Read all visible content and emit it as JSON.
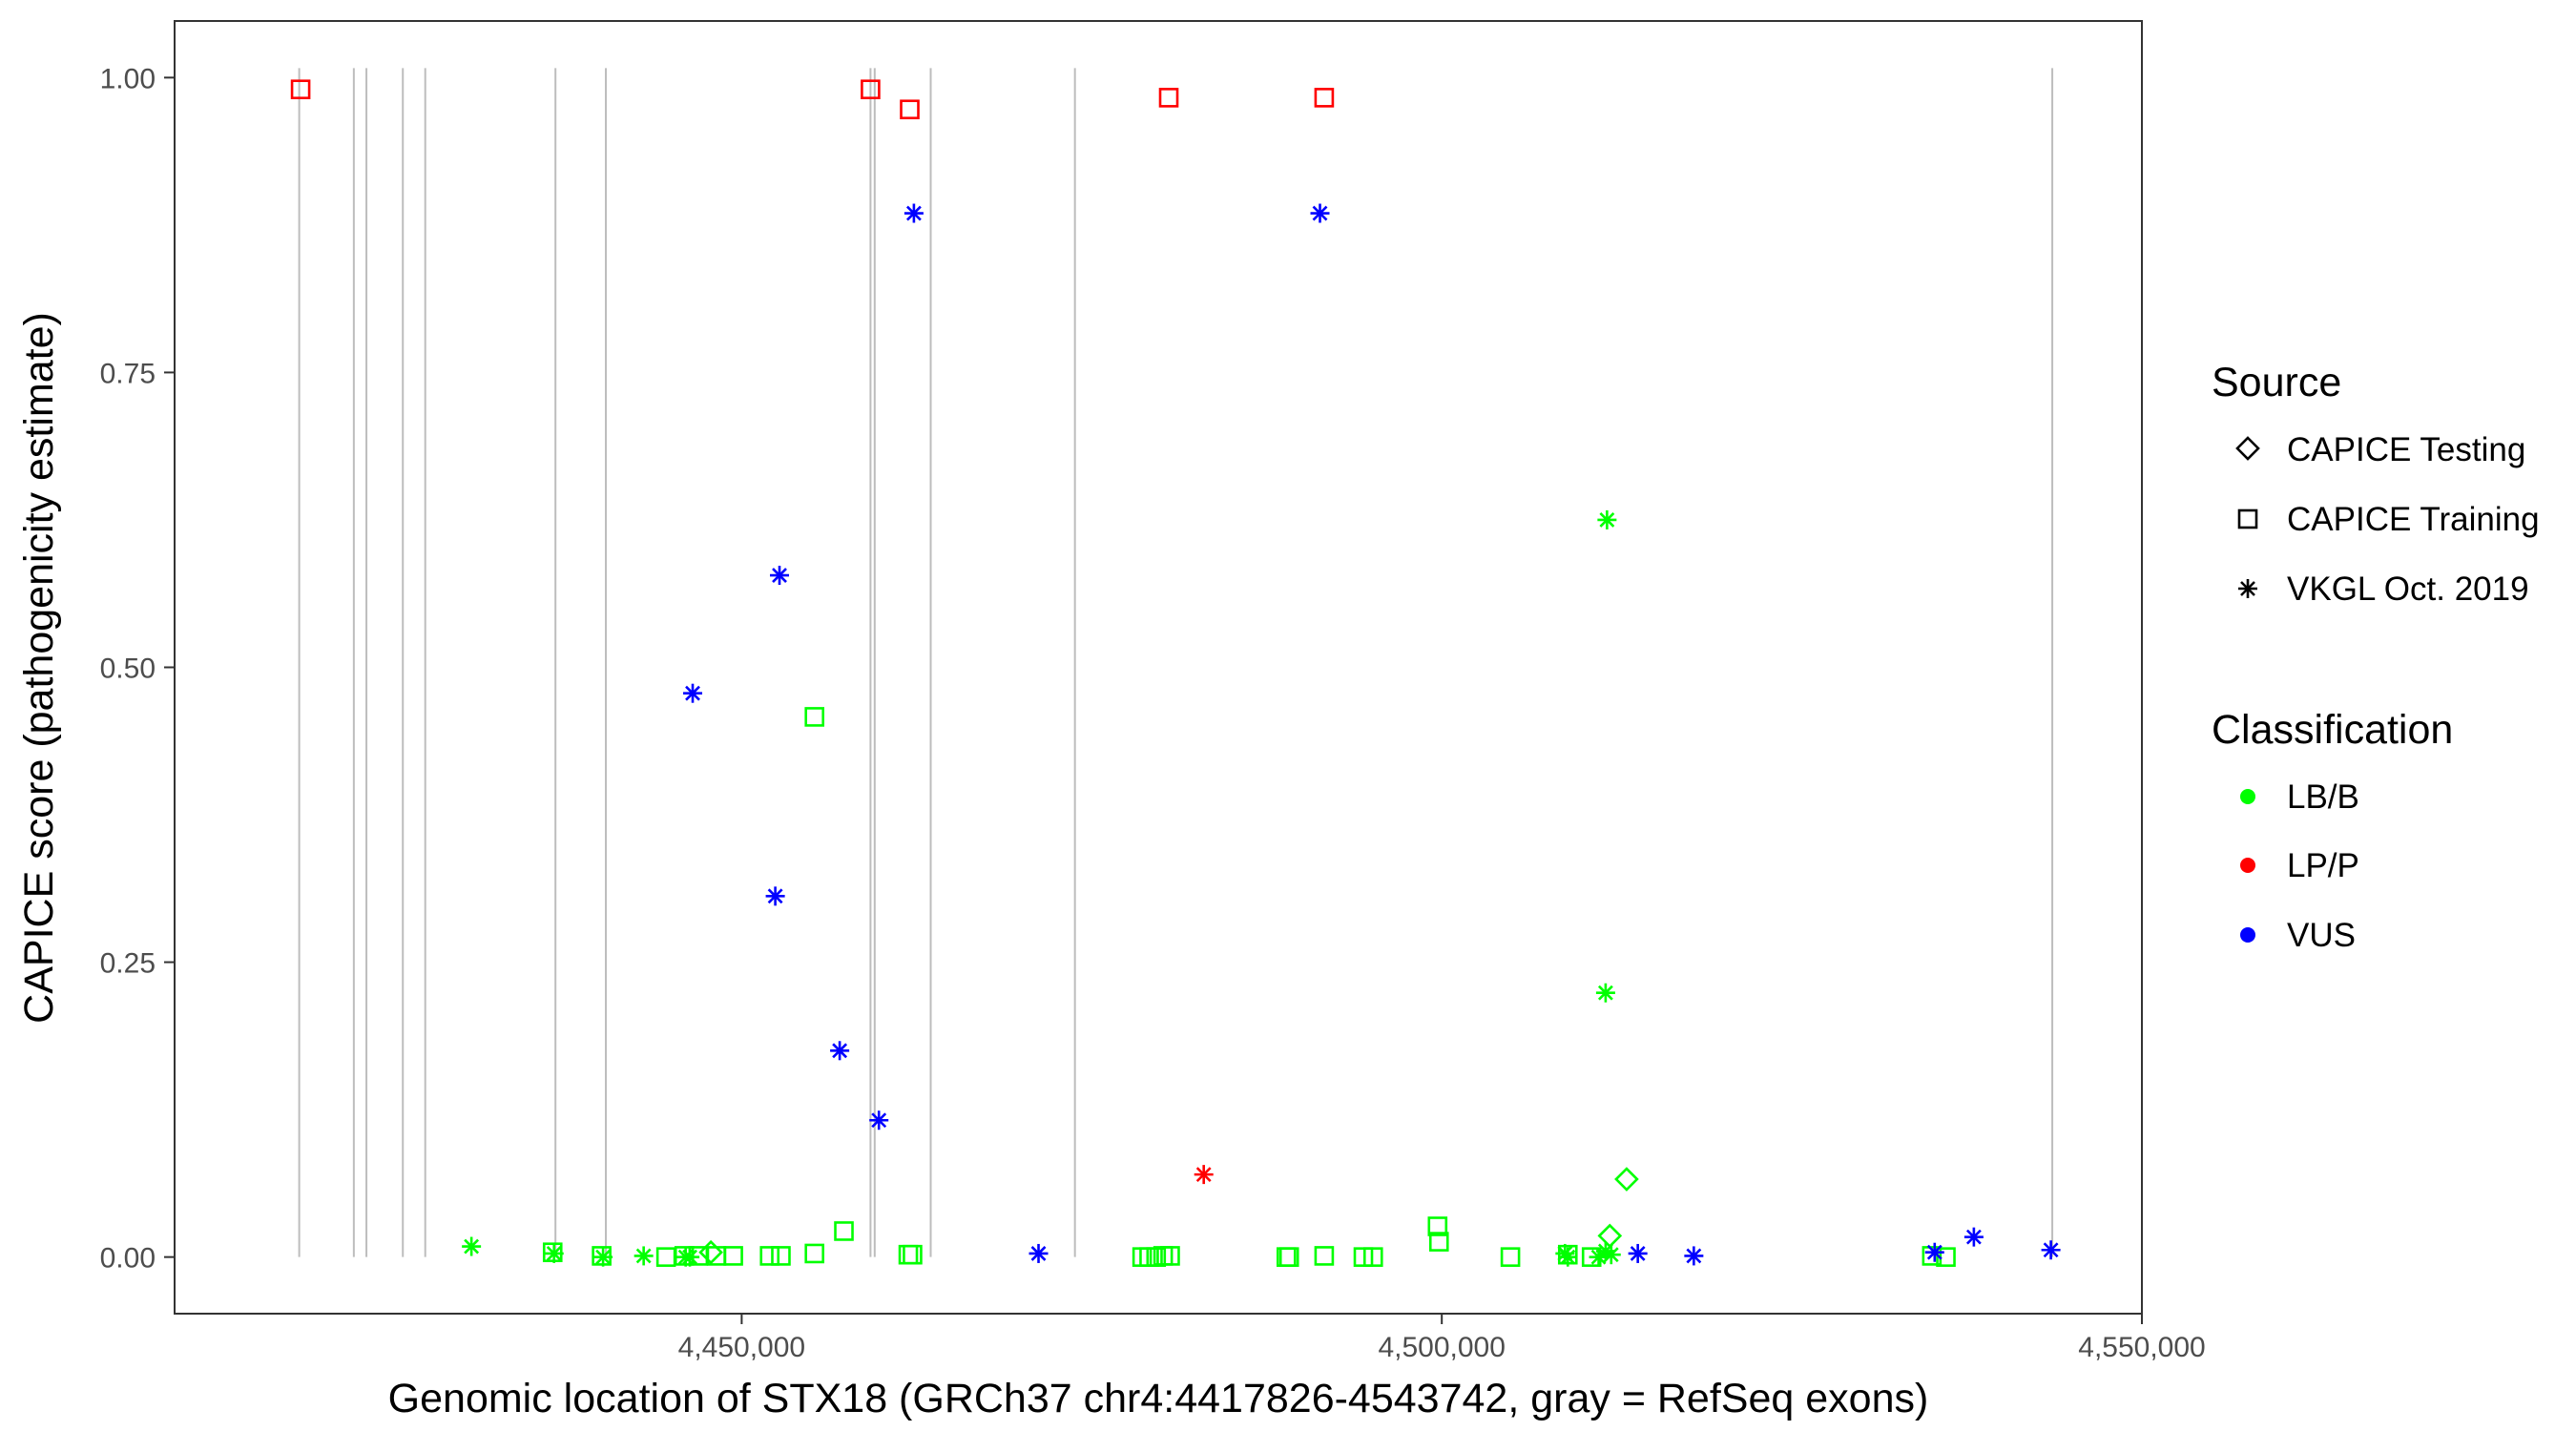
{
  "chart_data": {
    "type": "scatter",
    "xlabel": "Genomic location of STX18 (GRCh37 chr4:4417826-4543742, gray = RefSeq exons)",
    "ylabel": "CAPICE score (pathogenicity estimate)",
    "xlim": [
      4409500,
      4550000
    ],
    "ylim": [
      -0.048,
      1.048
    ],
    "x_ticks": [
      4450000,
      4500000,
      4550000
    ],
    "x_tick_labels": [
      "4,450,000",
      "4,500,000",
      "4,550,000"
    ],
    "y_ticks": [
      0,
      0.25,
      0.5,
      0.75,
      1.0
    ],
    "y_tick_labels": [
      "0.00",
      "0.25",
      "0.50",
      "0.75",
      "1.00"
    ],
    "grid": false,
    "exon_lines": [
      4418400,
      4422300,
      4423200,
      4425800,
      4427400,
      4436700,
      4440300,
      4459200,
      4459500,
      4463500,
      4473800,
      4543600
    ],
    "legend": {
      "placement": "right",
      "source": {
        "title": "Source",
        "items": [
          {
            "label": "CAPICE Testing",
            "shape": "diamond"
          },
          {
            "label": "CAPICE Training",
            "shape": "square"
          },
          {
            "label": "VKGL Oct. 2019",
            "shape": "asterisk"
          }
        ]
      },
      "classification": {
        "title": "Classification",
        "items": [
          {
            "label": "LB/B",
            "color": "#00ff00"
          },
          {
            "label": "LP/P",
            "color": "#ff0000"
          },
          {
            "label": "VUS",
            "color": "#0000ff"
          }
        ]
      }
    },
    "colors": {
      "LB/B": "#00ff00",
      "LP/P": "#ff0000",
      "VUS": "#0000ff"
    },
    "series": [
      {
        "source": "CAPICE Training",
        "shape": "square",
        "points": [
          {
            "x": 4418500,
            "y": 0.99,
            "class": "LP/P"
          },
          {
            "x": 4459200,
            "y": 0.99,
            "class": "LP/P"
          },
          {
            "x": 4462000,
            "y": 0.973,
            "class": "LP/P"
          },
          {
            "x": 4480500,
            "y": 0.983,
            "class": "LP/P"
          },
          {
            "x": 4491600,
            "y": 0.983,
            "class": "LP/P"
          },
          {
            "x": 4455200,
            "y": 0.458,
            "class": "LB/B"
          },
          {
            "x": 4457300,
            "y": 0.022,
            "class": "LB/B"
          },
          {
            "x": 4499700,
            "y": 0.026,
            "class": "LB/B"
          },
          {
            "x": 4499800,
            "y": 0.013,
            "class": "LB/B"
          },
          {
            "x": 4436500,
            "y": 0.004,
            "class": "LB/B"
          },
          {
            "x": 4440000,
            "y": 0.001,
            "class": "LB/B"
          },
          {
            "x": 4444600,
            "y": 0.0,
            "class": "LB/B"
          },
          {
            "x": 4445900,
            "y": 0.001,
            "class": "LB/B"
          },
          {
            "x": 4446900,
            "y": 0.001,
            "class": "LB/B"
          },
          {
            "x": 4448200,
            "y": 0.001,
            "class": "LB/B"
          },
          {
            "x": 4449400,
            "y": 0.001,
            "class": "LB/B"
          },
          {
            "x": 4452000,
            "y": 0.001,
            "class": "LB/B"
          },
          {
            "x": 4452800,
            "y": 0.001,
            "class": "LB/B"
          },
          {
            "x": 4455200,
            "y": 0.003,
            "class": "LB/B"
          },
          {
            "x": 4461900,
            "y": 0.002,
            "class": "LB/B"
          },
          {
            "x": 4462200,
            "y": 0.002,
            "class": "LB/B"
          },
          {
            "x": 4478600,
            "y": 0.0,
            "class": "LB/B"
          },
          {
            "x": 4479100,
            "y": 0.0,
            "class": "LB/B"
          },
          {
            "x": 4479600,
            "y": 0.0,
            "class": "LB/B"
          },
          {
            "x": 4480100,
            "y": 0.001,
            "class": "LB/B"
          },
          {
            "x": 4480600,
            "y": 0.001,
            "class": "LB/B"
          },
          {
            "x": 4488900,
            "y": 0.0,
            "class": "LB/B"
          },
          {
            "x": 4489100,
            "y": 0.0,
            "class": "LB/B"
          },
          {
            "x": 4491600,
            "y": 0.001,
            "class": "LB/B"
          },
          {
            "x": 4494400,
            "y": 0.0,
            "class": "LB/B"
          },
          {
            "x": 4495100,
            "y": 0.0,
            "class": "LB/B"
          },
          {
            "x": 4504900,
            "y": 0.0,
            "class": "LB/B"
          },
          {
            "x": 4509000,
            "y": 0.002,
            "class": "LB/B"
          },
          {
            "x": 4510700,
            "y": 0.0,
            "class": "LB/B"
          },
          {
            "x": 4535000,
            "y": 0.001,
            "class": "LB/B"
          },
          {
            "x": 4536000,
            "y": 0.0,
            "class": "LB/B"
          }
        ]
      },
      {
        "source": "CAPICE Testing",
        "shape": "diamond",
        "points": [
          {
            "x": 4447800,
            "y": 0.004,
            "class": "LB/B"
          },
          {
            "x": 4512000,
            "y": 0.018,
            "class": "LB/B"
          },
          {
            "x": 4513200,
            "y": 0.066,
            "class": "LB/B"
          }
        ]
      },
      {
        "source": "VKGL Oct. 2019",
        "shape": "asterisk",
        "points": [
          {
            "x": 4462300,
            "y": 0.885,
            "class": "VUS"
          },
          {
            "x": 4491300,
            "y": 0.885,
            "class": "VUS"
          },
          {
            "x": 4452700,
            "y": 0.578,
            "class": "VUS"
          },
          {
            "x": 4446500,
            "y": 0.478,
            "class": "VUS"
          },
          {
            "x": 4452400,
            "y": 0.306,
            "class": "VUS"
          },
          {
            "x": 4457000,
            "y": 0.175,
            "class": "VUS"
          },
          {
            "x": 4459800,
            "y": 0.116,
            "class": "VUS"
          },
          {
            "x": 4471200,
            "y": 0.003,
            "class": "VUS"
          },
          {
            "x": 4514000,
            "y": 0.003,
            "class": "VUS"
          },
          {
            "x": 4518000,
            "y": 0.001,
            "class": "VUS"
          },
          {
            "x": 4535200,
            "y": 0.004,
            "class": "VUS"
          },
          {
            "x": 4538000,
            "y": 0.017,
            "class": "VUS"
          },
          {
            "x": 4543500,
            "y": 0.006,
            "class": "VUS"
          },
          {
            "x": 4483000,
            "y": 0.07,
            "class": "LP/P"
          },
          {
            "x": 4511800,
            "y": 0.625,
            "class": "LB/B"
          },
          {
            "x": 4511700,
            "y": 0.224,
            "class": "LB/B"
          },
          {
            "x": 4430700,
            "y": 0.009,
            "class": "LB/B"
          },
          {
            "x": 4436600,
            "y": 0.003,
            "class": "LB/B"
          },
          {
            "x": 4440100,
            "y": 0.0,
            "class": "LB/B"
          },
          {
            "x": 4443000,
            "y": 0.001,
            "class": "LB/B"
          },
          {
            "x": 4446000,
            "y": 0.0,
            "class": "LB/B"
          },
          {
            "x": 4446300,
            "y": 0.0,
            "class": "LB/B"
          },
          {
            "x": 4508800,
            "y": 0.003,
            "class": "LB/B"
          },
          {
            "x": 4509000,
            "y": 0.0,
            "class": "LB/B"
          },
          {
            "x": 4511200,
            "y": 0.0,
            "class": "LB/B"
          },
          {
            "x": 4511700,
            "y": 0.005,
            "class": "LB/B"
          },
          {
            "x": 4512100,
            "y": 0.002,
            "class": "LB/B"
          }
        ]
      }
    ]
  }
}
